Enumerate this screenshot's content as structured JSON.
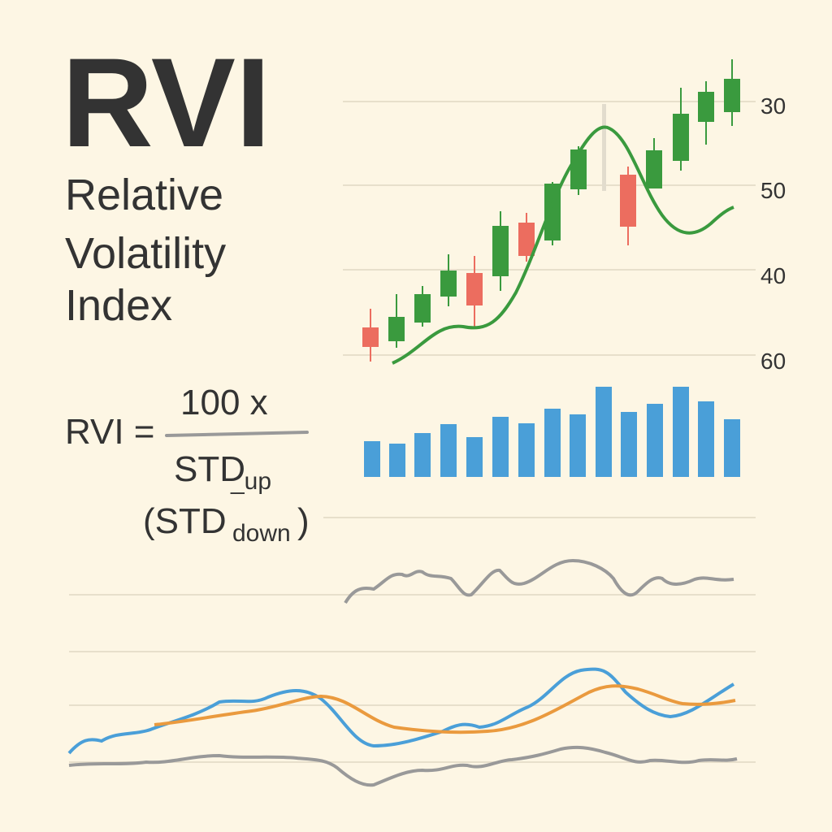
{
  "header": {
    "title": "RVI",
    "subtitle": [
      "Relative",
      "Volatility",
      "Index"
    ]
  },
  "formula": {
    "lhs": "RVI =",
    "numerator": "100 x",
    "denominator_main": "STD",
    "denominator_sub": "_up",
    "paren_open": "(STD",
    "paren_sub": "down",
    "paren_close": ")"
  },
  "axis_labels": [
    "30",
    "50",
    "40",
    "60"
  ]
}
